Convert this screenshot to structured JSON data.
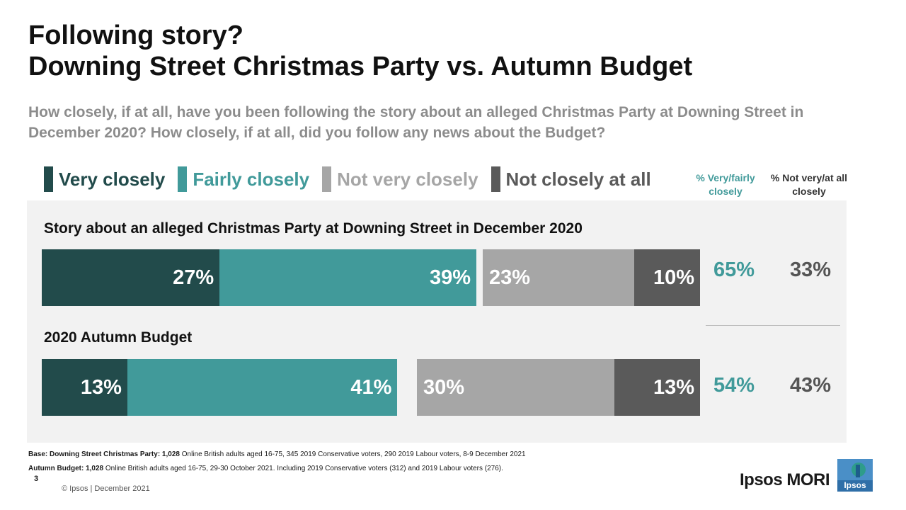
{
  "title": {
    "line1": "Following story?",
    "line2": "Downing Street Christmas Party vs. Autumn Budget"
  },
  "subtitle": "How closely, if at all, have you been following the story about an alleged Christmas Party at Downing Street in December 2020? How closely, if at all, did you follow any news about the Budget?",
  "legend": [
    {
      "label": "Very closely",
      "color": "#224b4b"
    },
    {
      "label": "Fairly closely",
      "color": "#419a9a"
    },
    {
      "label": "Not very closely",
      "color": "#a6a6a6"
    },
    {
      "label": "Not closely at all",
      "color": "#5a5a5a"
    }
  ],
  "columns": {
    "net_close": "% Very/fairly closely",
    "net_not": "% Not very/at all closely"
  },
  "colors": {
    "very": "#224b4b",
    "fairly": "#419a9a",
    "not_very": "#a6a6a6",
    "not_at_all": "#5a5a5a",
    "net_close_text": "#419a9a",
    "net_not_text": "#555555",
    "panel": "#f2f2f2"
  },
  "chart_data": {
    "type": "bar",
    "orientation": "horizontal-stacked-diverging",
    "categories": [
      "Story about an alleged Christmas Party at Downing Street in December 2020",
      "2020 Autumn Budget"
    ],
    "series": [
      {
        "name": "Very closely",
        "values": [
          27,
          13
        ],
        "labels": [
          "27%",
          "13%"
        ]
      },
      {
        "name": "Fairly closely",
        "values": [
          39,
          41
        ],
        "labels": [
          "39%",
          "41%"
        ]
      },
      {
        "name": "Not very closely",
        "values": [
          23,
          30
        ],
        "labels": [
          "23%",
          "30%"
        ]
      },
      {
        "name": "Not closely at all",
        "values": [
          10,
          13
        ],
        "labels": [
          "10%",
          "13%"
        ]
      }
    ],
    "net_very_fairly": [
      "65%",
      "54%"
    ],
    "net_not_very_at_all": [
      "33%",
      "43%"
    ]
  },
  "footer": {
    "base1_bold": "Base: Downing Street Christmas Party: 1,028",
    "base1_text": " Online British adults aged 16-75, 345 2019 Conservative voters, 290 2019 Labour voters, 8-9 December 2021",
    "base2_bold": "Autumn Budget: 1,028",
    "base2_text": " Online British adults aged 16-75, 29-30 October 2021. Including 2019 Conservative voters (312) and 2019 Labour voters (276).",
    "page_number": "3",
    "copyright": "© Ipsos | December 2021",
    "logo_text": "Ipsos MORI",
    "logo_badge_text": "Ipsos"
  }
}
